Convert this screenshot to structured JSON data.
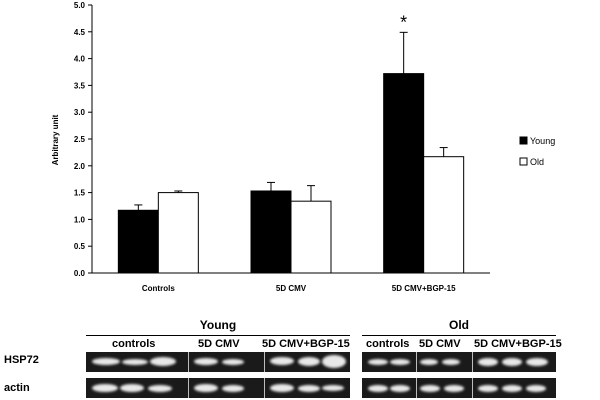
{
  "chart_data": {
    "type": "bar",
    "ylabel": "Arbitrary unit",
    "ylim": [
      0,
      5.0
    ],
    "yticks": [
      "0.0",
      "0.5",
      "1.0",
      "1.5",
      "2.0",
      "2.5",
      "3.0",
      "3.5",
      "4.0",
      "4.5",
      "5.0"
    ],
    "categories": [
      "Controls",
      "5D CMV",
      "5D CMV+BGP-15"
    ],
    "series": [
      {
        "name": "Young",
        "color": "#000000",
        "values": [
          1.17,
          1.53,
          3.72
        ],
        "errors": [
          0.1,
          0.16,
          0.77
        ]
      },
      {
        "name": "Old",
        "color": "#ffffff",
        "values": [
          1.5,
          1.34,
          2.17
        ],
        "errors": [
          0.03,
          0.29,
          0.17
        ]
      }
    ],
    "annotations": [
      {
        "category": "5D CMV+BGP-15",
        "series": "Young",
        "text": "*"
      }
    ],
    "legend_position": "right",
    "grid": false
  },
  "blot": {
    "groups": [
      {
        "title": "Young",
        "conditions": [
          "controls",
          "5D CMV",
          "5D CMV+BGP-15"
        ]
      },
      {
        "title": "Old",
        "conditions": [
          "controls",
          "5D CMV",
          "5D CMV+BGP-15"
        ]
      }
    ],
    "rows": [
      "HSP72",
      "actin"
    ]
  }
}
